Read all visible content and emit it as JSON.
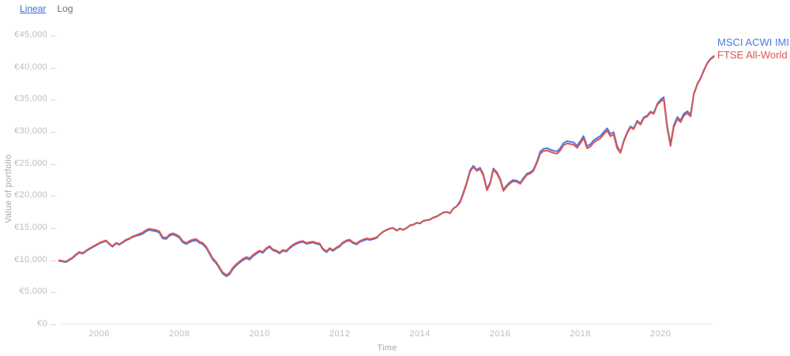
{
  "controls": {
    "linear_label": "Linear",
    "log_label": "Log"
  },
  "legend": [
    {
      "label": "MSCI ACWI IMI",
      "color": "#4a7be0"
    },
    {
      "label": "FTSE All-World",
      "color": "#dd5450"
    }
  ],
  "chart_data": {
    "type": "line",
    "title": "",
    "xlabel": "Time",
    "ylabel": "Value of portfolio",
    "currency": "EUR",
    "xlim": [
      2005.0,
      2021.4
    ],
    "ylim": [
      0,
      45000
    ],
    "x_ticks": [
      2006,
      2008,
      2010,
      2012,
      2014,
      2016,
      2018,
      2020
    ],
    "y_ticks": [
      45000,
      40000,
      35000,
      30000,
      25000,
      20000,
      15000,
      10000,
      5000,
      0
    ],
    "grid": false,
    "legend_position": "top-right",
    "x": [
      2005.0,
      2005.08,
      2005.17,
      2005.25,
      2005.33,
      2005.42,
      2005.5,
      2005.58,
      2005.67,
      2005.75,
      2005.83,
      2005.92,
      2006.0,
      2006.08,
      2006.17,
      2006.25,
      2006.33,
      2006.42,
      2006.5,
      2006.58,
      2006.67,
      2006.75,
      2006.83,
      2006.92,
      2007.0,
      2007.08,
      2007.17,
      2007.25,
      2007.33,
      2007.42,
      2007.5,
      2007.58,
      2007.67,
      2007.75,
      2007.83,
      2007.92,
      2008.0,
      2008.08,
      2008.17,
      2008.25,
      2008.33,
      2008.42,
      2008.5,
      2008.58,
      2008.67,
      2008.75,
      2008.83,
      2008.92,
      2009.0,
      2009.08,
      2009.17,
      2009.25,
      2009.33,
      2009.42,
      2009.5,
      2009.58,
      2009.67,
      2009.75,
      2009.83,
      2009.92,
      2010.0,
      2010.08,
      2010.17,
      2010.25,
      2010.33,
      2010.42,
      2010.5,
      2010.58,
      2010.67,
      2010.75,
      2010.83,
      2010.92,
      2011.0,
      2011.08,
      2011.17,
      2011.25,
      2011.33,
      2011.42,
      2011.5,
      2011.58,
      2011.67,
      2011.75,
      2011.83,
      2011.92,
      2012.0,
      2012.08,
      2012.17,
      2012.25,
      2012.33,
      2012.42,
      2012.5,
      2012.58,
      2012.67,
      2012.75,
      2012.83,
      2012.92,
      2013.0,
      2013.08,
      2013.17,
      2013.25,
      2013.33,
      2013.42,
      2013.5,
      2013.58,
      2013.67,
      2013.75,
      2013.83,
      2013.92,
      2014.0,
      2014.08,
      2014.17,
      2014.25,
      2014.33,
      2014.42,
      2014.5,
      2014.58,
      2014.67,
      2014.75,
      2014.83,
      2014.92,
      2015.0,
      2015.08,
      2015.17,
      2015.25,
      2015.33,
      2015.42,
      2015.5,
      2015.58,
      2015.67,
      2015.75,
      2015.83,
      2015.92,
      2016.0,
      2016.08,
      2016.17,
      2016.25,
      2016.33,
      2016.42,
      2016.5,
      2016.58,
      2016.67,
      2016.75,
      2016.83,
      2016.92,
      2017.0,
      2017.08,
      2017.17,
      2017.25,
      2017.33,
      2017.42,
      2017.5,
      2017.58,
      2017.67,
      2017.75,
      2017.83,
      2017.92,
      2018.0,
      2018.08,
      2018.17,
      2018.25,
      2018.33,
      2018.42,
      2018.5,
      2018.58,
      2018.67,
      2018.75,
      2018.83,
      2018.92,
      2019.0,
      2019.08,
      2019.17,
      2019.25,
      2019.33,
      2019.42,
      2019.5,
      2019.58,
      2019.67,
      2019.75,
      2019.83,
      2019.92,
      2020.0,
      2020.08,
      2020.17,
      2020.25,
      2020.33,
      2020.42,
      2020.5,
      2020.58,
      2020.67,
      2020.75,
      2020.83,
      2020.92,
      2021.0,
      2021.08,
      2021.17,
      2021.25,
      2021.33
    ],
    "series": [
      {
        "name": "MSCI ACWI IMI",
        "color": "#4a7be0",
        "values": [
          9900,
          9800,
          9700,
          10000,
          10300,
          10800,
          11200,
          11000,
          11400,
          11700,
          12000,
          12300,
          12600,
          12800,
          13000,
          12500,
          12100,
          12600,
          12400,
          12700,
          13100,
          13300,
          13600,
          13800,
          13900,
          14100,
          14500,
          14700,
          14600,
          14500,
          14300,
          13400,
          13300,
          13800,
          14000,
          13800,
          13500,
          12800,
          12500,
          12800,
          13000,
          13100,
          12700,
          12500,
          11900,
          11000,
          10100,
          9500,
          8700,
          7900,
          7500,
          7800,
          8600,
          9200,
          9600,
          10000,
          10300,
          10100,
          10600,
          11000,
          11350,
          11150,
          11750,
          12050,
          11550,
          11350,
          11050,
          11450,
          11350,
          11850,
          12250,
          12550,
          12750,
          12850,
          12550,
          12650,
          12750,
          12550,
          12450,
          11650,
          11250,
          11750,
          11450,
          11850,
          12150,
          12650,
          12950,
          13050,
          12650,
          12450,
          12850,
          13050,
          13250,
          13150,
          13250,
          13450,
          14050,
          14450,
          14750,
          14950,
          15050,
          14650,
          14950,
          14750,
          15050,
          15450,
          15550,
          15850,
          15750,
          16150,
          16250,
          16350,
          16650,
          16850,
          17150,
          17450,
          17550,
          17350,
          18050,
          18450,
          19200,
          20500,
          22200,
          24000,
          24700,
          24100,
          24400,
          23400,
          21100,
          22100,
          24300,
          23700,
          22700,
          21000,
          21700,
          22200,
          22500,
          22400,
          22100,
          22800,
          23500,
          23700,
          24100,
          25400,
          26950,
          27350,
          27450,
          27250,
          27050,
          26950,
          27450,
          28250,
          28550,
          28450,
          28350,
          27850,
          28550,
          29350,
          27750,
          28050,
          28650,
          29050,
          29350,
          29950,
          30550,
          29650,
          29950,
          27750,
          26850,
          28550,
          29950,
          30850,
          30550,
          31750,
          31250,
          32250,
          32550,
          33150,
          32950,
          34350,
          35000,
          35400,
          30800,
          28100,
          31000,
          32300,
          31800,
          32800,
          33200,
          32700,
          35900,
          37500,
          38400,
          39600,
          40800,
          41400,
          41800
        ]
      },
      {
        "name": "FTSE All-World",
        "color": "#dd5450",
        "values": [
          10000,
          9900,
          9800,
          10100,
          10400,
          10900,
          11300,
          11100,
          11500,
          11800,
          12100,
          12400,
          12700,
          12900,
          13100,
          12600,
          12200,
          12700,
          12500,
          12800,
          13200,
          13400,
          13700,
          13900,
          14100,
          14300,
          14700,
          14900,
          14800,
          14700,
          14500,
          13600,
          13500,
          14000,
          14200,
          14000,
          13700,
          13000,
          12700,
          13000,
          13200,
          13300,
          12900,
          12700,
          12100,
          11200,
          10300,
          9700,
          8900,
          8100,
          7700,
          8000,
          8800,
          9400,
          9800,
          10200,
          10500,
          10300,
          10800,
          11200,
          11500,
          11300,
          11900,
          12200,
          11700,
          11500,
          11200,
          11600,
          11500,
          12000,
          12400,
          12700,
          12900,
          13000,
          12700,
          12800,
          12900,
          12700,
          12600,
          11800,
          11400,
          11900,
          11600,
          12000,
          12300,
          12800,
          13100,
          13200,
          12800,
          12600,
          13000,
          13200,
          13400,
          13300,
          13400,
          13600,
          14000,
          14400,
          14700,
          14900,
          15000,
          14600,
          14900,
          14700,
          15000,
          15400,
          15500,
          15800,
          15700,
          16100,
          16200,
          16300,
          16600,
          16800,
          17100,
          17400,
          17500,
          17300,
          18000,
          18400,
          19000,
          20300,
          22000,
          23800,
          24500,
          23900,
          24200,
          23200,
          20900,
          21900,
          24100,
          23500,
          22500,
          20800,
          21500,
          22000,
          22300,
          22200,
          21900,
          22600,
          23300,
          23500,
          23900,
          25200,
          26600,
          27000,
          27100,
          26900,
          26700,
          26600,
          27100,
          27900,
          28200,
          28100,
          28000,
          27500,
          28200,
          29000,
          27400,
          27700,
          28300,
          28700,
          29000,
          29600,
          30200,
          29300,
          29600,
          27400,
          26700,
          28400,
          29800,
          30700,
          30400,
          31600,
          31100,
          32100,
          32400,
          33000,
          32800,
          34200,
          34700,
          35100,
          30500,
          27800,
          30700,
          32000,
          31500,
          32500,
          32900,
          32400,
          35800,
          37400,
          38300,
          39500,
          40700,
          41300,
          41700
        ]
      }
    ]
  }
}
